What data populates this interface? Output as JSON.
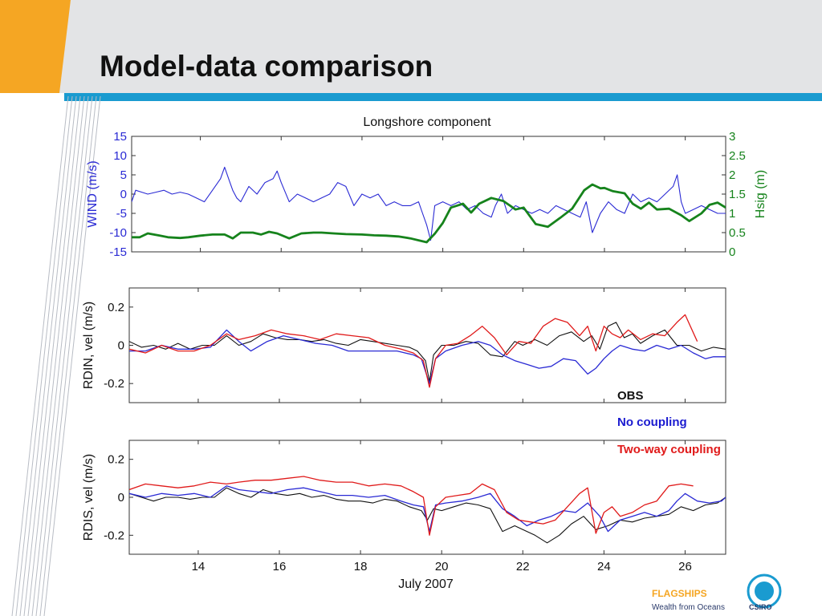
{
  "slide": {
    "title": "Model-data comparison",
    "colors": {
      "header_bg": "#e3e4e6",
      "accent_orange": "#f5a623",
      "rule_blue": "#1a9bd0"
    }
  },
  "footer": {
    "tagline": "Wealth from Oceans",
    "brand": "CSIRO",
    "program_partial": "FLAGSHIPS"
  },
  "chart_data": [
    {
      "type": "line",
      "title": "Longshore component",
      "xlim": [
        12.3,
        27.0
      ],
      "ylabel": "WIND (m/s)",
      "ylabel_right": "Hsig (m)",
      "ylim": [
        -15,
        15
      ],
      "ylim_right": [
        0,
        3
      ],
      "yticks": [
        "15",
        "10",
        "5",
        "0",
        "-5",
        "-10",
        "-15"
      ],
      "yticks_right": [
        "3",
        "2.5",
        "2",
        "1.5",
        "1",
        "0.5",
        "0"
      ],
      "series": [
        {
          "axis": "left",
          "color": "#2a2ad4",
          "width": 1.1,
          "x": [
            12.3,
            12.4,
            12.55,
            12.7,
            12.9,
            13.1,
            13.3,
            13.5,
            13.7,
            13.9,
            14.1,
            14.3,
            14.5,
            14.6,
            14.7,
            14.8,
            14.9,
            15.0,
            15.2,
            15.4,
            15.6,
            15.8,
            15.9,
            16.0,
            16.2,
            16.4,
            16.6,
            16.8,
            17.0,
            17.2,
            17.4,
            17.6,
            17.8,
            18.0,
            18.2,
            18.4,
            18.6,
            18.8,
            19.0,
            19.2,
            19.4,
            19.5,
            19.6,
            19.7,
            19.8,
            20.0,
            20.2,
            20.4,
            20.6,
            20.8,
            21.0,
            21.2,
            21.3,
            21.45,
            21.6,
            21.8,
            22.0,
            22.2,
            22.4,
            22.6,
            22.8,
            23.0,
            23.2,
            23.4,
            23.55,
            23.7,
            23.9,
            24.1,
            24.3,
            24.5,
            24.7,
            24.9,
            25.1,
            25.3,
            25.5,
            25.7,
            25.8,
            25.9,
            26.0,
            26.2,
            26.4,
            26.6,
            26.8,
            27.0
          ],
          "y": [
            -2,
            1,
            0.5,
            0,
            0.5,
            1,
            0,
            0.5,
            0,
            -1,
            -2,
            1,
            4,
            7,
            4,
            1,
            -1,
            -2,
            2,
            0,
            3,
            4,
            6,
            3,
            -2,
            0,
            -1,
            -2,
            -1,
            0,
            3,
            2,
            -3,
            0,
            -1,
            0,
            -3,
            -2,
            -3,
            -3,
            -2,
            -5,
            -8,
            -12,
            -3,
            -2,
            -3,
            -2,
            -4,
            -3,
            -5,
            -6,
            -3,
            0,
            -5,
            -3,
            -4,
            -5,
            -4,
            -5,
            -3,
            -4,
            -5,
            -6,
            -2,
            -10,
            -5,
            -2,
            -4,
            -5,
            0,
            -2,
            -1,
            -2,
            0,
            2,
            5,
            -2,
            -5,
            -4,
            -3,
            -4,
            -5,
            -5
          ]
        },
        {
          "axis": "right",
          "color": "#16831c",
          "width": 2.8,
          "x": [
            12.3,
            12.5,
            12.7,
            13.0,
            13.2,
            13.5,
            13.7,
            14.0,
            14.3,
            14.6,
            14.8,
            15.0,
            15.3,
            15.5,
            15.7,
            15.9,
            16.2,
            16.5,
            16.8,
            17.0,
            17.3,
            17.6,
            18.0,
            18.3,
            18.6,
            18.9,
            19.2,
            19.4,
            19.6,
            19.8,
            20.0,
            20.2,
            20.5,
            20.7,
            20.9,
            21.2,
            21.5,
            21.8,
            22.0,
            22.3,
            22.6,
            22.9,
            23.2,
            23.5,
            23.7,
            23.9,
            24.0,
            24.2,
            24.5,
            24.7,
            24.9,
            25.1,
            25.3,
            25.6,
            25.9,
            26.1,
            26.4,
            26.6,
            26.8,
            27.0
          ],
          "y": [
            0.38,
            0.38,
            0.48,
            0.42,
            0.38,
            0.36,
            0.38,
            0.42,
            0.45,
            0.45,
            0.35,
            0.5,
            0.5,
            0.45,
            0.52,
            0.48,
            0.35,
            0.48,
            0.5,
            0.5,
            0.48,
            0.46,
            0.45,
            0.43,
            0.42,
            0.4,
            0.35,
            0.3,
            0.25,
            0.47,
            0.75,
            1.15,
            1.25,
            1.02,
            1.25,
            1.4,
            1.32,
            1.1,
            1.15,
            0.72,
            0.65,
            0.88,
            1.12,
            1.6,
            1.75,
            1.65,
            1.66,
            1.58,
            1.52,
            1.25,
            1.12,
            1.28,
            1.1,
            1.12,
            0.95,
            0.8,
            1.0,
            1.22,
            1.28,
            1.15
          ]
        }
      ]
    },
    {
      "type": "line",
      "ylabel": "RDIN, vel (m/s)",
      "xlim": [
        12.3,
        27.0
      ],
      "ylim": [
        -0.3,
        0.3
      ],
      "yticks": [
        "0.2",
        "0",
        "-0.2"
      ],
      "series": [
        {
          "name": "OBS",
          "color": "#111111",
          "width": 1.1,
          "x": [
            12.3,
            12.6,
            12.9,
            13.2,
            13.5,
            13.8,
            14.1,
            14.4,
            14.7,
            15.0,
            15.3,
            15.6,
            15.9,
            16.2,
            16.5,
            16.8,
            17.1,
            17.4,
            17.7,
            18.0,
            18.3,
            18.6,
            18.9,
            19.2,
            19.4,
            19.6,
            19.7,
            19.8,
            20.0,
            20.3,
            20.6,
            20.9,
            21.2,
            21.5,
            21.8,
            22.0,
            22.3,
            22.6,
            22.9,
            23.2,
            23.5,
            23.7,
            23.9,
            24.1,
            24.3,
            24.5,
            24.7,
            24.9,
            25.2,
            25.5,
            25.8,
            26.1,
            26.4,
            26.7,
            27.0
          ],
          "y": [
            0.02,
            -0.01,
            0.0,
            -0.02,
            0.01,
            -0.02,
            0.0,
            0.0,
            0.05,
            0.0,
            0.02,
            0.06,
            0.04,
            0.03,
            0.03,
            0.02,
            0.03,
            0.01,
            0.0,
            0.03,
            0.02,
            0.01,
            0.0,
            -0.01,
            -0.03,
            -0.08,
            -0.19,
            -0.05,
            0.0,
            0.0,
            0.02,
            0.01,
            -0.05,
            -0.06,
            0.02,
            0.0,
            0.03,
            0.0,
            0.05,
            0.07,
            0.02,
            0.05,
            -0.02,
            0.1,
            0.12,
            0.04,
            0.06,
            0.01,
            0.05,
            0.08,
            0.0,
            0.0,
            -0.03,
            -0.01,
            -0.02
          ]
        },
        {
          "name": "No coupling",
          "color": "#2a2ad4",
          "width": 1.3,
          "x": [
            12.3,
            12.7,
            13.1,
            13.5,
            13.9,
            14.3,
            14.7,
            15.0,
            15.3,
            15.7,
            16.1,
            16.5,
            16.9,
            17.3,
            17.7,
            18.1,
            18.5,
            18.9,
            19.3,
            19.5,
            19.7,
            19.85,
            20.1,
            20.5,
            20.9,
            21.2,
            21.5,
            21.8,
            22.1,
            22.4,
            22.7,
            23.0,
            23.3,
            23.6,
            23.8,
            24.0,
            24.2,
            24.4,
            24.7,
            25.0,
            25.3,
            25.6,
            25.9,
            26.2,
            26.5,
            26.7,
            27.0
          ],
          "y": [
            -0.03,
            -0.03,
            0.0,
            -0.02,
            -0.02,
            -0.01,
            0.08,
            0.02,
            -0.03,
            0.02,
            0.05,
            0.03,
            0.01,
            0.0,
            -0.03,
            -0.03,
            -0.03,
            -0.03,
            -0.05,
            -0.07,
            -0.2,
            -0.07,
            -0.03,
            0.0,
            0.02,
            0.0,
            -0.05,
            -0.08,
            -0.1,
            -0.12,
            -0.11,
            -0.07,
            -0.08,
            -0.15,
            -0.12,
            -0.07,
            -0.03,
            0.0,
            -0.02,
            -0.03,
            0.0,
            -0.02,
            0.0,
            -0.04,
            -0.07,
            -0.06,
            -0.06
          ]
        },
        {
          "name": "Two-way coupling",
          "color": "#e01a1a",
          "width": 1.3,
          "x": [
            12.3,
            12.7,
            13.1,
            13.5,
            13.9,
            14.3,
            14.7,
            15.0,
            15.4,
            15.8,
            16.2,
            16.6,
            17.0,
            17.4,
            17.8,
            18.2,
            18.6,
            19.0,
            19.3,
            19.55,
            19.7,
            19.85,
            20.1,
            20.4,
            20.7,
            21.0,
            21.3,
            21.6,
            21.9,
            22.2,
            22.5,
            22.8,
            23.1,
            23.4,
            23.6,
            23.8,
            24.0,
            24.2,
            24.4,
            24.6,
            24.9,
            25.2,
            25.5,
            25.8,
            26.0,
            26.3
          ],
          "y": [
            -0.02,
            -0.04,
            0.0,
            -0.03,
            -0.03,
            0.0,
            0.06,
            0.03,
            0.05,
            0.08,
            0.06,
            0.05,
            0.03,
            0.06,
            0.05,
            0.04,
            0.0,
            -0.02,
            -0.04,
            -0.08,
            -0.22,
            -0.07,
            0.0,
            0.01,
            0.05,
            0.1,
            0.04,
            -0.05,
            0.02,
            0.01,
            0.1,
            0.14,
            0.12,
            0.05,
            0.1,
            -0.03,
            0.1,
            0.06,
            0.04,
            0.08,
            0.03,
            0.06,
            0.05,
            0.12,
            0.16,
            0.02
          ]
        }
      ]
    },
    {
      "type": "line",
      "ylabel": "RDIS, vel (m/s)",
      "xlabel": "July 2007",
      "xlim": [
        12.3,
        27.0
      ],
      "ylim": [
        -0.3,
        0.3
      ],
      "yticks": [
        "0.2",
        "0",
        "-0.2"
      ],
      "xticks": [
        "14",
        "16",
        "18",
        "20",
        "22",
        "24",
        "26"
      ],
      "series": [
        {
          "name": "OBS",
          "color": "#111111",
          "width": 1.1,
          "x": [
            12.3,
            12.6,
            12.9,
            13.2,
            13.5,
            13.8,
            14.1,
            14.4,
            14.7,
            15.0,
            15.3,
            15.6,
            15.9,
            16.2,
            16.5,
            16.8,
            17.1,
            17.4,
            17.7,
            18.0,
            18.3,
            18.6,
            18.9,
            19.2,
            19.5,
            19.65,
            19.8,
            20.0,
            20.3,
            20.6,
            20.9,
            21.2,
            21.5,
            21.8,
            22.0,
            22.3,
            22.6,
            22.9,
            23.2,
            23.5,
            23.8,
            24.1,
            24.4,
            24.7,
            25.0,
            25.3,
            25.6,
            25.9,
            26.2,
            26.5,
            26.8,
            27.0
          ],
          "y": [
            0.02,
            0.0,
            -0.02,
            0.0,
            0.0,
            -0.01,
            0.0,
            0.0,
            0.05,
            0.02,
            0.0,
            0.04,
            0.02,
            0.01,
            0.02,
            0.0,
            0.01,
            -0.01,
            -0.02,
            -0.02,
            -0.03,
            -0.01,
            -0.02,
            -0.05,
            -0.07,
            -0.12,
            -0.06,
            -0.07,
            -0.05,
            -0.03,
            -0.04,
            -0.06,
            -0.18,
            -0.15,
            -0.17,
            -0.2,
            -0.24,
            -0.2,
            -0.14,
            -0.1,
            -0.17,
            -0.15,
            -0.12,
            -0.13,
            -0.11,
            -0.1,
            -0.09,
            -0.05,
            -0.07,
            -0.04,
            -0.03,
            0.0
          ]
        },
        {
          "name": "No coupling",
          "color": "#2a2ad4",
          "width": 1.3,
          "x": [
            12.3,
            12.7,
            13.1,
            13.5,
            13.9,
            14.3,
            14.7,
            15.0,
            15.4,
            15.8,
            16.2,
            16.6,
            17.0,
            17.4,
            17.8,
            18.2,
            18.6,
            19.0,
            19.3,
            19.55,
            19.7,
            19.85,
            20.1,
            20.5,
            20.9,
            21.2,
            21.5,
            21.8,
            22.1,
            22.4,
            22.7,
            23.0,
            23.3,
            23.6,
            23.9,
            24.1,
            24.4,
            24.7,
            25.0,
            25.3,
            25.6,
            25.8,
            26.0,
            26.3,
            26.6,
            26.9,
            27.0
          ],
          "y": [
            0.02,
            0.0,
            0.02,
            0.01,
            0.02,
            0.0,
            0.06,
            0.04,
            0.03,
            0.02,
            0.04,
            0.05,
            0.03,
            0.01,
            0.01,
            0.0,
            0.01,
            -0.02,
            -0.04,
            -0.05,
            -0.18,
            -0.04,
            -0.03,
            -0.02,
            0.0,
            0.02,
            -0.06,
            -0.1,
            -0.15,
            -0.12,
            -0.1,
            -0.07,
            -0.08,
            -0.03,
            -0.1,
            -0.18,
            -0.12,
            -0.1,
            -0.08,
            -0.1,
            -0.07,
            -0.02,
            0.02,
            -0.02,
            -0.03,
            -0.02,
            0.0
          ]
        },
        {
          "name": "Two-way coupling",
          "color": "#e01a1a",
          "width": 1.3,
          "x": [
            12.3,
            12.7,
            13.1,
            13.5,
            13.9,
            14.3,
            14.7,
            15.0,
            15.4,
            15.8,
            16.2,
            16.6,
            17.0,
            17.4,
            17.8,
            18.2,
            18.6,
            19.0,
            19.3,
            19.55,
            19.7,
            19.85,
            20.1,
            20.4,
            20.7,
            21.0,
            21.3,
            21.6,
            21.9,
            22.2,
            22.5,
            22.8,
            23.1,
            23.4,
            23.6,
            23.8,
            24.0,
            24.2,
            24.4,
            24.7,
            25.0,
            25.3,
            25.6,
            25.9,
            26.2
          ],
          "y": [
            0.04,
            0.07,
            0.06,
            0.05,
            0.06,
            0.08,
            0.07,
            0.08,
            0.09,
            0.09,
            0.1,
            0.11,
            0.09,
            0.08,
            0.08,
            0.06,
            0.07,
            0.06,
            0.03,
            0.0,
            -0.2,
            -0.05,
            0.0,
            0.01,
            0.02,
            0.07,
            0.04,
            -0.08,
            -0.12,
            -0.13,
            -0.14,
            -0.12,
            -0.05,
            0.02,
            0.05,
            -0.19,
            -0.08,
            -0.05,
            -0.1,
            -0.08,
            -0.04,
            -0.02,
            0.06,
            0.07,
            0.06
          ]
        }
      ]
    }
  ],
  "legend": [
    {
      "label": "OBS",
      "color": "#111111"
    },
    {
      "label": "No coupling",
      "color": "#1a1ad0"
    },
    {
      "label": "Two-way coupling",
      "color": "#e01a1a"
    }
  ]
}
